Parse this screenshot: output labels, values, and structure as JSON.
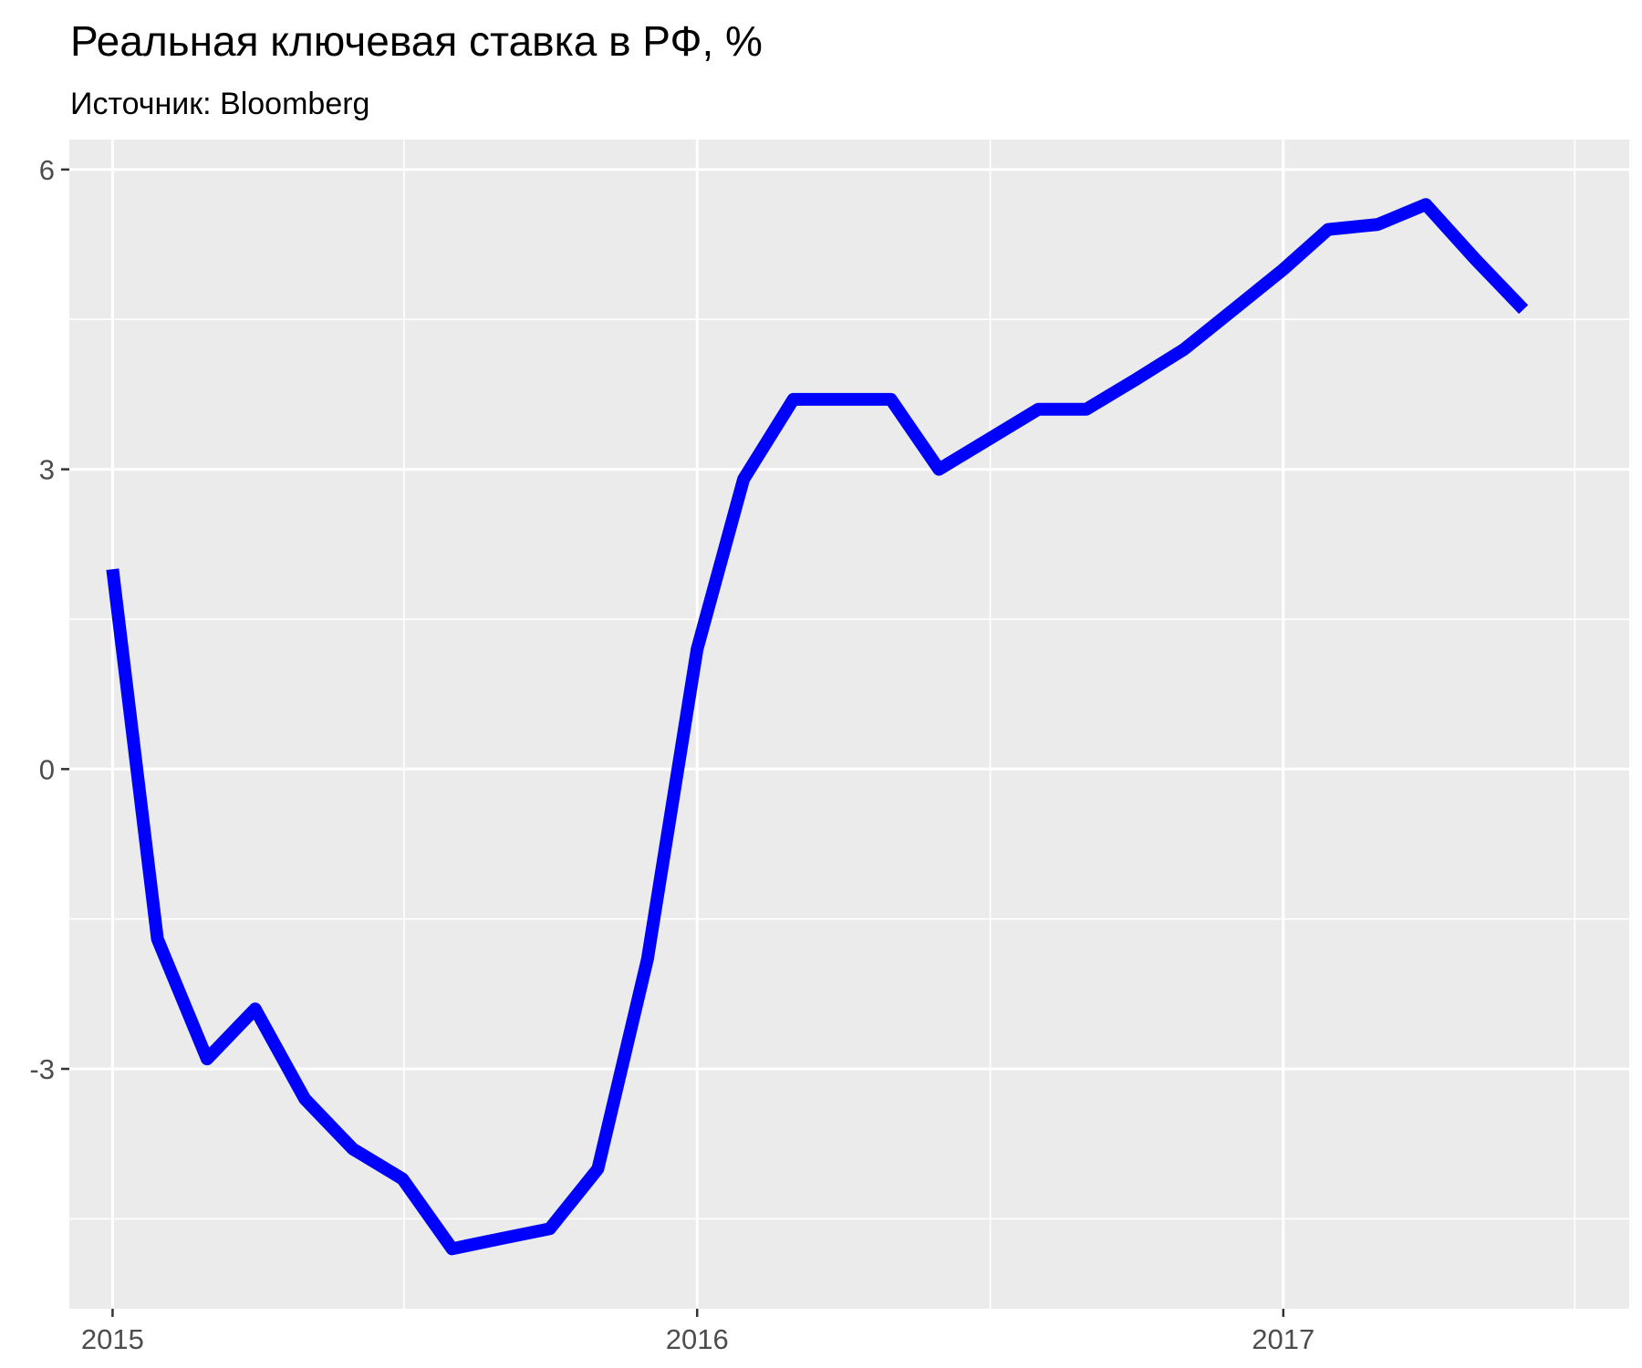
{
  "title": "Реальная ключевая ставка в РФ, %",
  "subtitle": "Источник: Bloomberg",
  "chart_data": {
    "type": "line",
    "title": "Реальная ключевая ставка в РФ, %",
    "subtitle": "Источник: Bloomberg",
    "xlabel": "",
    "ylabel": "",
    "x_ticks": [
      "2015",
      "2016",
      "2017"
    ],
    "y_ticks": [
      "-3",
      "0",
      "3",
      "6"
    ],
    "x_range": [
      "2014-12-05",
      "2017-08-05"
    ],
    "y_range": [
      -5.4,
      6.3
    ],
    "grid": true,
    "line_color": "#0000ff",
    "panel_background": "#ebebeb",
    "series": [
      {
        "x": [
          "2015-01-31",
          "2015-02-28",
          "2015-03-31",
          "2015-04-30",
          "2015-05-31",
          "2015-06-30",
          "2015-07-31",
          "2015-08-31",
          "2015-09-30",
          "2015-10-31",
          "2015-11-30",
          "2015-12-31",
          "2016-01-31",
          "2016-02-29",
          "2016-03-31",
          "2016-04-30",
          "2016-05-31",
          "2016-06-30",
          "2016-07-31",
          "2016-08-31",
          "2016-09-30",
          "2016-10-31",
          "2016-11-30",
          "2016-12-31",
          "2017-01-31",
          "2017-02-28",
          "2017-03-31",
          "2017-04-30",
          "2017-05-31",
          "2017-06-30",
          "2017-07-31"
        ],
        "values": [
          2.0,
          -1.7,
          -2.9,
          -2.4,
          -3.3,
          -3.8,
          -4.1,
          -4.8,
          -4.7,
          -4.6,
          -4.0,
          -1.9,
          1.2,
          2.9,
          3.7,
          3.7,
          3.7,
          3.0,
          3.3,
          3.6,
          3.6,
          3.9,
          4.2,
          4.6,
          5.0,
          5.4,
          5.45,
          5.65,
          5.1,
          4.6,
          null
        ]
      }
    ]
  }
}
